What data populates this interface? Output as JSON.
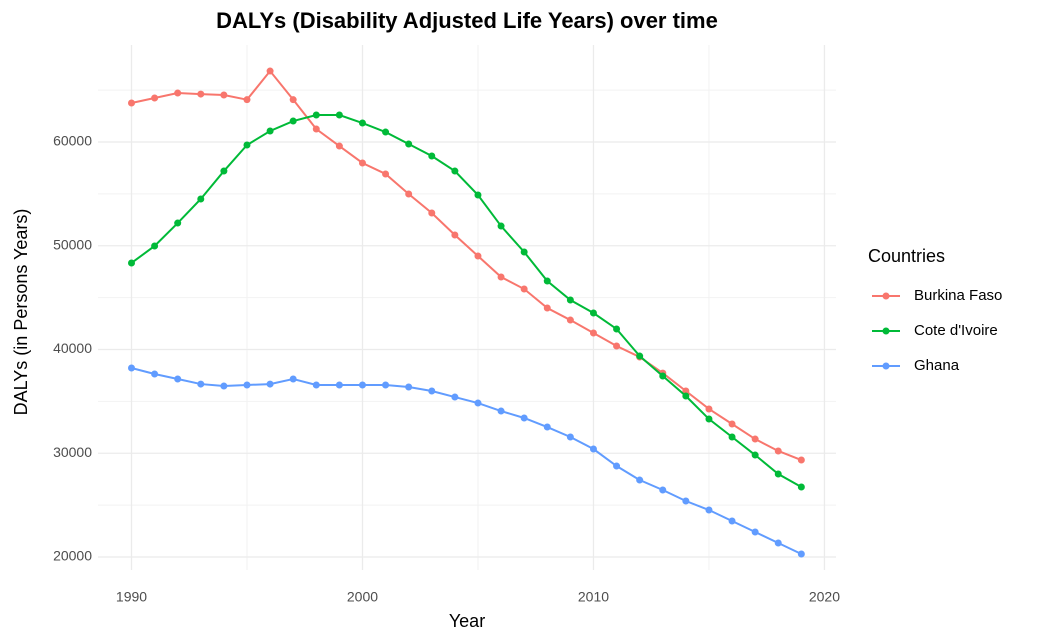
{
  "chart_data": {
    "type": "line",
    "title": "DALYs (Disability Adjusted Life Years) over time",
    "xlabel": "Year",
    "ylabel": "DALYs (in Persons Years)",
    "legend_title": "Countries",
    "legend_position": "right",
    "grid": true,
    "x": [
      1990,
      1991,
      1992,
      1993,
      1994,
      1995,
      1996,
      1997,
      1998,
      1999,
      2000,
      2001,
      2002,
      2003,
      2004,
      2005,
      2006,
      2007,
      2008,
      2009,
      2010,
      2011,
      2012,
      2013,
      2014,
      2015,
      2016,
      2017,
      2018,
      2019
    ],
    "xlim": [
      1988.55,
      2020.5
    ],
    "xticks": [
      1990,
      2000,
      2010,
      2020
    ],
    "ylim": [
      18750,
      69350
    ],
    "yticks": [
      20000,
      30000,
      40000,
      50000,
      60000
    ],
    "series": [
      {
        "name": "Burkina Faso",
        "color": "#F8766D",
        "values": [
          63760,
          64240,
          64720,
          64620,
          64530,
          64080,
          66840,
          64080,
          61250,
          59610,
          57980,
          56920,
          54990,
          53160,
          51040,
          49010,
          46990,
          45830,
          44000,
          42840,
          41590,
          40340,
          39280,
          37730,
          36000,
          34270,
          32820,
          31370,
          30220,
          29350
        ]
      },
      {
        "name": "Cote d'Ivoire",
        "color": "#00BA38",
        "values": [
          48340,
          49980,
          52190,
          54510,
          57200,
          59710,
          61060,
          62020,
          62600,
          62600,
          61830,
          60960,
          59810,
          58650,
          57200,
          54890,
          51900,
          49400,
          46600,
          44770,
          43520,
          41980,
          39370,
          37450,
          35520,
          33300,
          31570,
          29830,
          28000,
          26750
        ]
      },
      {
        "name": "Ghana",
        "color": "#619CFF",
        "values": [
          38220,
          37640,
          37160,
          36670,
          36480,
          36580,
          36670,
          37160,
          36580,
          36580,
          36580,
          36580,
          36390,
          36000,
          35420,
          34840,
          34070,
          33400,
          32530,
          31570,
          30410,
          28770,
          27420,
          26460,
          25400,
          24530,
          23470,
          22410,
          21350,
          20290
        ]
      }
    ]
  }
}
